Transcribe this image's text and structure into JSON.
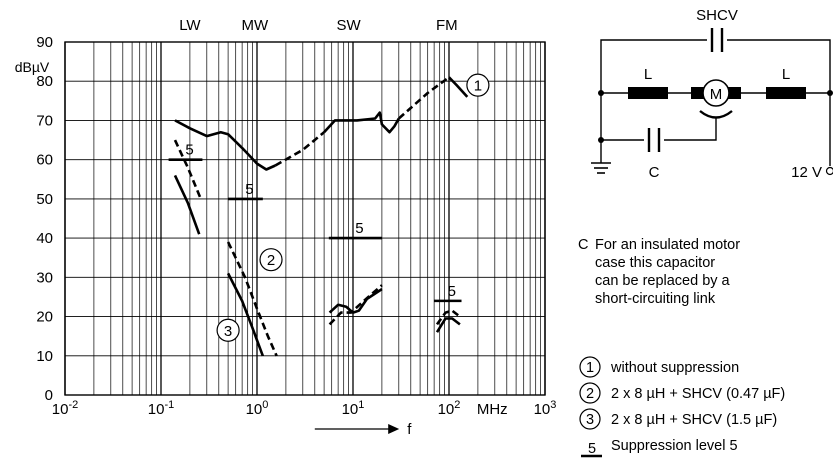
{
  "chart_data": {
    "type": "line",
    "x_scale": "log",
    "xlim": [
      0.01,
      1000
    ],
    "ylim": [
      0,
      90
    ],
    "grid": true,
    "y_unit": "dBµV",
    "x_unit": "MHz",
    "x_axis_symbol": "f",
    "y_ticks": [
      "0",
      "10",
      "20",
      "30",
      "40",
      "50",
      "60",
      "70",
      "80",
      "90"
    ],
    "x_ticks": [
      {
        "base": "10",
        "exp": "-2",
        "value": 0.01
      },
      {
        "base": "10",
        "exp": "-1",
        "value": 0.1
      },
      {
        "base": "10",
        "exp": "0",
        "value": 1
      },
      {
        "base": "10",
        "exp": "1",
        "value": 10
      },
      {
        "base": "10",
        "exp": "2",
        "value": 100
      },
      {
        "base": "10",
        "exp": "3",
        "value": 1000
      }
    ],
    "bands": [
      {
        "label": "LW",
        "x": 0.2
      },
      {
        "label": "MW",
        "x": 0.95
      },
      {
        "label": "SW",
        "x": 9.0
      },
      {
        "label": "FM",
        "x": 95
      }
    ],
    "series": [
      {
        "id": "1",
        "segments": [
          {
            "style": "solid",
            "points": [
              [
                0.14,
                70
              ],
              [
                0.2,
                68
              ],
              [
                0.3,
                66
              ],
              [
                0.42,
                67
              ],
              [
                0.5,
                66.5
              ],
              [
                0.7,
                63
              ],
              [
                1.0,
                59
              ],
              [
                1.25,
                57.5
              ],
              [
                1.55,
                58.5
              ]
            ]
          },
          {
            "style": "dashed",
            "points": [
              [
                1.55,
                58.5
              ],
              [
                3.0,
                62.5
              ],
              [
                5.0,
                67
              ]
            ]
          },
          {
            "style": "solid",
            "points": [
              [
                5.0,
                67
              ],
              [
                6.5,
                70
              ],
              [
                11,
                70
              ],
              [
                17,
                70.5
              ],
              [
                19,
                72
              ],
              [
                20,
                69
              ],
              [
                24,
                67
              ],
              [
                27,
                68.5
              ],
              [
                30,
                70.5
              ]
            ]
          },
          {
            "style": "dashed",
            "points": [
              [
                30,
                70.5
              ],
              [
                60,
                77
              ],
              [
                100,
                81
              ]
            ]
          },
          {
            "style": "solid",
            "points": [
              [
                100,
                81
              ],
              [
                120,
                79
              ],
              [
                155,
                76
              ]
            ]
          }
        ]
      },
      {
        "id": "2",
        "segments": [
          {
            "style": "dashed",
            "points": [
              [
                0.14,
                65
              ],
              [
                0.19,
                58
              ],
              [
                0.26,
                50
              ]
            ]
          },
          {
            "style": "dashed",
            "points": [
              [
                0.5,
                39
              ],
              [
                0.75,
                30
              ],
              [
                1.0,
                22
              ],
              [
                1.3,
                15
              ],
              [
                1.6,
                10
              ]
            ]
          },
          {
            "style": "dashed",
            "points": [
              [
                5.7,
                18
              ],
              [
                7.5,
                21
              ],
              [
                9.5,
                21
              ],
              [
                13,
                24
              ],
              [
                20,
                28
              ]
            ]
          },
          {
            "style": "dashed",
            "points": [
              [
                75,
                18
              ],
              [
                92,
                21
              ],
              [
                108,
                21.5
              ],
              [
                130,
                20
              ]
            ]
          }
        ]
      },
      {
        "id": "3",
        "segments": [
          {
            "style": "solid",
            "points": [
              [
                0.14,
                56
              ],
              [
                0.19,
                49
              ],
              [
                0.25,
                41
              ]
            ]
          },
          {
            "style": "solid",
            "points": [
              [
                0.5,
                31
              ],
              [
                0.7,
                24
              ],
              [
                0.9,
                17
              ],
              [
                1.15,
                10
              ]
            ]
          },
          {
            "style": "solid",
            "points": [
              [
                5.7,
                21
              ],
              [
                7.0,
                23
              ],
              [
                8.5,
                22.5
              ],
              [
                10,
                21
              ],
              [
                11.5,
                21.5
              ],
              [
                14,
                24.5
              ],
              [
                20,
                27
              ]
            ]
          },
          {
            "style": "solid",
            "points": [
              [
                75,
                16
              ],
              [
                92,
                19.5
              ],
              [
                108,
                19.5
              ],
              [
                130,
                18
              ]
            ]
          }
        ]
      }
    ],
    "suppression_level_lines": [
      {
        "x": [
          0.12,
          0.27
        ],
        "y": 60,
        "label": "5"
      },
      {
        "x": [
          0.5,
          1.15
        ],
        "y": 50,
        "label": "5"
      },
      {
        "x": [
          5.6,
          20
        ],
        "y": 40,
        "label": "5"
      },
      {
        "x": [
          70,
          135
        ],
        "y": 24,
        "label": "5"
      }
    ],
    "curve_markers": [
      {
        "label": "1",
        "x": 200,
        "y": 79
      },
      {
        "label": "2",
        "x": 1.4,
        "y": 34.5
      },
      {
        "label": "3",
        "x": 0.5,
        "y": 16.5
      }
    ]
  },
  "circuit": {
    "capacitor_top_label": "SHCV",
    "inductor_left_label": "L",
    "inductor_right_label": "L",
    "motor_label": "M",
    "capacitor_bottom_label": "C",
    "supply_label": "12 V"
  },
  "notes": {
    "c_note_key": "C",
    "c_note_lines": [
      "For an insulated motor",
      "case this capacitor",
      "can be replaced by a",
      "short-circuiting link"
    ]
  },
  "legend": [
    {
      "marker": "1",
      "text": "without suppression"
    },
    {
      "marker": "2",
      "text": "2 x 8 µH + SHCV (0.47 µF)"
    },
    {
      "marker": "3",
      "text": "2 x 8 µH + SHCV (1.5 µF)"
    },
    {
      "marker": "5",
      "text": "Suppression level 5"
    }
  ]
}
